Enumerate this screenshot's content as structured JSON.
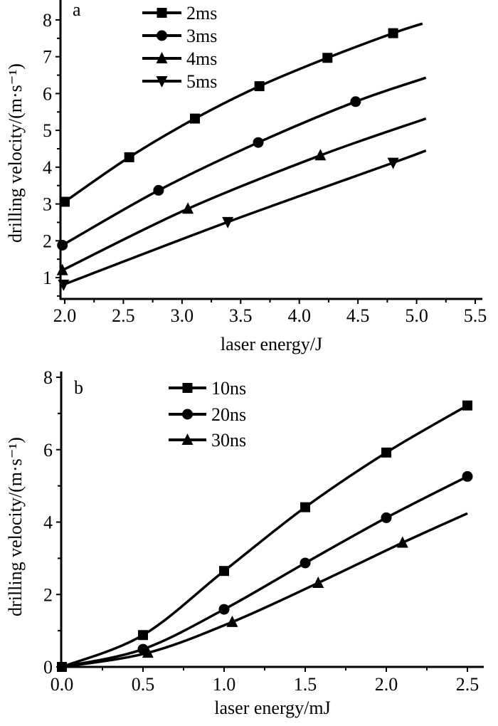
{
  "chart_data": [
    {
      "type": "line",
      "panel_label": "a",
      "xlabel": "laser energy/J",
      "ylabel": "drilling velocity/(m·s⁻¹)",
      "xlim": [
        1.98,
        5.5
      ],
      "ylim": [
        0.4,
        8.56
      ],
      "xticks": [
        "2.0",
        "2.5",
        "3.0",
        "3.5",
        "4.0",
        "4.5",
        "5.0",
        "5.5"
      ],
      "yticks": [
        "1",
        "2",
        "3",
        "4",
        "5",
        "6",
        "7",
        "8"
      ],
      "grid": false,
      "legend_position": "top-left",
      "series": [
        {
          "name": "2ms",
          "marker": "square",
          "x": [
            2.0,
            2.55,
            3.11,
            3.66,
            4.24,
            4.8,
            5.05
          ],
          "y": [
            3.06,
            4.27,
            5.32,
            6.2,
            6.97,
            7.64,
            7.9
          ],
          "markers": [
            true,
            true,
            true,
            true,
            true,
            true,
            false
          ]
        },
        {
          "name": "3ms",
          "marker": "circle",
          "x": [
            1.98,
            2.8,
            3.65,
            4.48,
            5.08
          ],
          "y": [
            1.88,
            3.37,
            4.67,
            5.78,
            6.43
          ],
          "markers": [
            true,
            true,
            true,
            true,
            false
          ]
        },
        {
          "name": "4ms",
          "marker": "triangle-up",
          "x": [
            1.98,
            3.05,
            4.18,
            5.08
          ],
          "y": [
            1.2,
            2.87,
            4.32,
            5.32
          ],
          "markers": [
            true,
            true,
            true,
            false
          ]
        },
        {
          "name": "5ms",
          "marker": "triangle-down",
          "x": [
            1.99,
            3.39,
            4.8,
            5.08
          ],
          "y": [
            0.81,
            2.51,
            4.12,
            4.45
          ],
          "markers": [
            true,
            true,
            true,
            false
          ]
        }
      ]
    },
    {
      "type": "line",
      "panel_label": "b",
      "xlabel": "laser energy/mJ",
      "ylabel": "drilling velocity/(m·s⁻¹)",
      "xlim": [
        0,
        2.6
      ],
      "ylim": [
        0,
        8.1
      ],
      "xticks": [
        "0.0",
        "0.5",
        "1.0",
        "1.5",
        "2.0",
        "2.5"
      ],
      "yticks": [
        "0",
        "2",
        "4",
        "6",
        "8"
      ],
      "grid": false,
      "legend_position": "top-left",
      "series": [
        {
          "name": "10ns",
          "marker": "square",
          "x": [
            0,
            0.5,
            1.0,
            1.5,
            2.0,
            2.5
          ],
          "y": [
            0,
            0.88,
            2.65,
            4.41,
            5.92,
            7.22
          ],
          "markers": [
            true,
            true,
            true,
            true,
            true,
            true
          ]
        },
        {
          "name": "20ns",
          "marker": "circle",
          "x": [
            0,
            0.5,
            1.0,
            1.5,
            2.0,
            2.5
          ],
          "y": [
            0,
            0.49,
            1.59,
            2.87,
            4.12,
            5.26
          ],
          "markers": [
            false,
            true,
            true,
            true,
            true,
            true
          ]
        },
        {
          "name": "30ns",
          "marker": "triangle-up",
          "x": [
            0,
            0.53,
            1.05,
            1.58,
            2.1,
            2.5
          ],
          "y": [
            0,
            0.39,
            1.24,
            2.32,
            3.43,
            4.24
          ],
          "markers": [
            false,
            true,
            true,
            true,
            true,
            false
          ]
        }
      ]
    }
  ]
}
